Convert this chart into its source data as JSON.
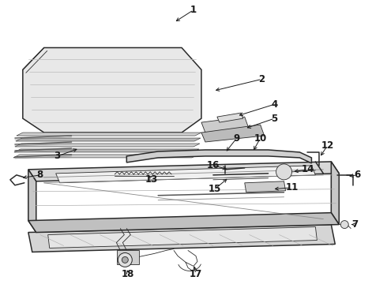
{
  "background_color": "#ffffff",
  "line_color": "#2a2a2a",
  "text_color": "#1a1a1a",
  "figure_width": 4.9,
  "figure_height": 3.6,
  "dpi": 100,
  "label_fontsize": 8.5,
  "lw_main": 1.1,
  "lw_thin": 0.6,
  "lw_thick": 1.8,
  "fill_light": "#e8e8e8",
  "fill_mid": "#c8c8c8",
  "fill_dark": "#a8a8a8"
}
